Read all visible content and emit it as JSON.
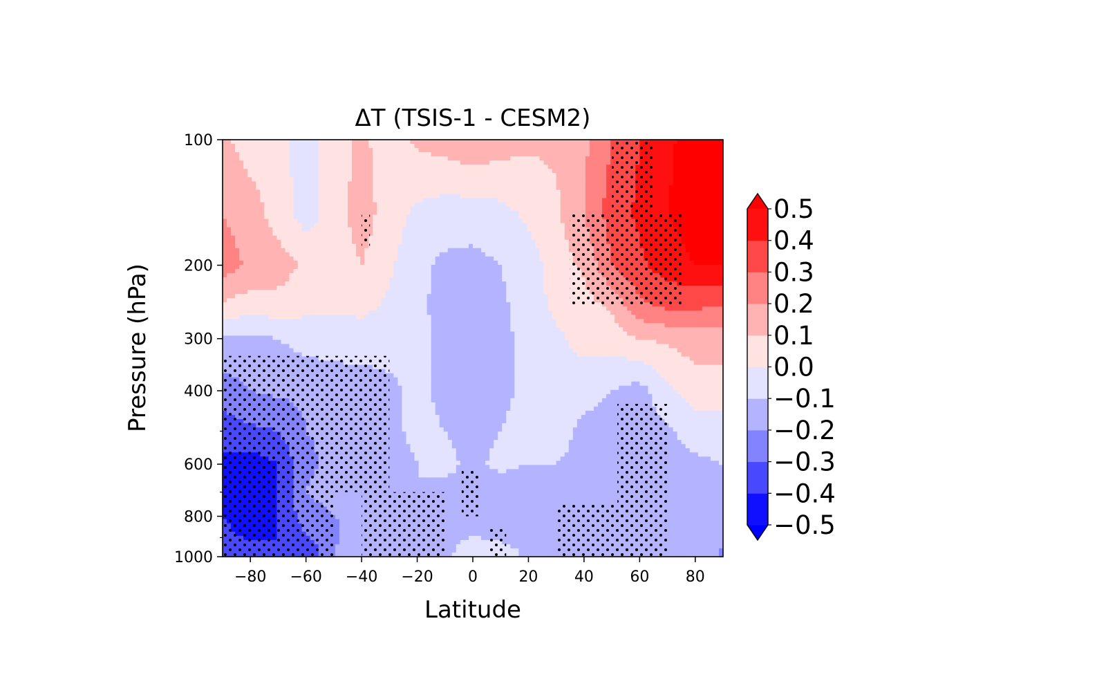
{
  "chart_data": {
    "type": "heatmap",
    "subtype": "filled-contour",
    "title": "ΔT (TSIS-1 - CESM2)",
    "xlabel": "Latitude",
    "ylabel": "Pressure (hPa)",
    "xlim": [
      -90,
      90
    ],
    "ylim": [
      1000,
      100
    ],
    "y_scale": "log",
    "x_ticks": [
      -80,
      -60,
      -40,
      -20,
      0,
      20,
      40,
      60,
      80
    ],
    "x_tick_labels": [
      "−80",
      "−60",
      "−40",
      "−20",
      "0",
      "20",
      "40",
      "60",
      "80"
    ],
    "y_ticks": [
      100,
      200,
      300,
      400,
      600,
      800,
      1000
    ],
    "y_tick_labels": [
      "100",
      "200",
      "300",
      "400",
      "600",
      "800",
      "1000"
    ],
    "y_minor_ticks": [
      500,
      700,
      900
    ],
    "colorbar": {
      "levels": [
        -0.5,
        -0.4,
        -0.3,
        -0.2,
        -0.1,
        0.0,
        0.1,
        0.2,
        0.3,
        0.4,
        0.5
      ],
      "tick_labels": [
        "−0.5",
        "−0.4",
        "−0.3",
        "−0.2",
        "−0.1",
        "0.0",
        "0.1",
        "0.2",
        "0.3",
        "0.4",
        "0.5"
      ],
      "extend": "both",
      "colors": [
        "#1010ff",
        "#4848ff",
        "#8383ff",
        "#b3b3ff",
        "#e3e3ff",
        "#ffe3e3",
        "#ffb3b3",
        "#ff8383",
        "#ff4848",
        "#ff1010"
      ],
      "under_color": "#0000ff",
      "over_color": "#ff0000"
    },
    "grid": false,
    "stippling": "black dots mark statistically significant regions",
    "latitudes": [
      -90,
      -80,
      -70,
      -60,
      -50,
      -40,
      -30,
      -20,
      -10,
      0,
      10,
      20,
      30,
      40,
      50,
      60,
      70,
      80,
      90
    ],
    "pressures": [
      100,
      150,
      200,
      250,
      300,
      400,
      500,
      600,
      700,
      850,
      1000
    ],
    "values": [
      [
        0.12,
        0.05,
        0.04,
        -0.05,
        0.05,
        0.12,
        0.05,
        0.12,
        0.15,
        0.18,
        0.15,
        0.12,
        0.12,
        0.18,
        0.3,
        0.4,
        0.48,
        0.55,
        0.58
      ],
      [
        0.2,
        0.15,
        0.05,
        -0.05,
        0.05,
        0.15,
        0.05,
        -0.02,
        -0.05,
        -0.05,
        -0.03,
        0.02,
        0.08,
        0.2,
        0.35,
        0.42,
        0.5,
        0.55,
        0.58
      ],
      [
        0.25,
        0.18,
        0.15,
        0.08,
        0.05,
        0.1,
        0.02,
        -0.08,
        -0.12,
        -0.13,
        -0.1,
        -0.05,
        0.05,
        0.12,
        0.3,
        0.38,
        0.45,
        0.5,
        0.5
      ],
      [
        0.08,
        0.05,
        0.06,
        0.03,
        0.02,
        0.03,
        -0.02,
        -0.08,
        -0.13,
        -0.13,
        -0.12,
        -0.05,
        0.02,
        0.06,
        0.12,
        0.28,
        0.32,
        0.32,
        0.3
      ],
      [
        -0.12,
        -0.12,
        -0.1,
        -0.06,
        -0.06,
        -0.05,
        -0.06,
        -0.08,
        -0.12,
        -0.14,
        -0.12,
        -0.08,
        -0.02,
        0.04,
        0.05,
        0.1,
        0.12,
        0.15,
        0.15
      ],
      [
        -0.25,
        -0.2,
        -0.18,
        -0.18,
        -0.15,
        -0.15,
        -0.12,
        -0.08,
        -0.12,
        -0.15,
        -0.12,
        -0.08,
        -0.05,
        -0.07,
        -0.1,
        -0.14,
        -0.02,
        0.05,
        0.05
      ],
      [
        -0.35,
        -0.32,
        -0.3,
        -0.2,
        -0.18,
        -0.15,
        -0.12,
        -0.08,
        -0.1,
        -0.12,
        -0.1,
        -0.07,
        -0.07,
        -0.12,
        -0.14,
        -0.15,
        -0.12,
        -0.06,
        -0.06
      ],
      [
        -0.42,
        -0.45,
        -0.4,
        -0.22,
        -0.18,
        -0.15,
        -0.14,
        -0.1,
        -0.08,
        -0.12,
        -0.08,
        -0.1,
        -0.1,
        -0.12,
        -0.14,
        -0.16,
        -0.12,
        -0.12,
        -0.1
      ],
      [
        -0.45,
        -0.48,
        -0.4,
        -0.2,
        -0.15,
        -0.15,
        -0.15,
        -0.1,
        -0.12,
        -0.12,
        -0.15,
        -0.15,
        -0.15,
        -0.15,
        -0.15,
        -0.2,
        -0.12,
        -0.12,
        -0.12
      ],
      [
        -0.38,
        -0.45,
        -0.4,
        -0.28,
        -0.22,
        -0.15,
        -0.12,
        -0.12,
        -0.12,
        -0.12,
        -0.15,
        -0.12,
        -0.12,
        -0.15,
        -0.15,
        -0.15,
        -0.12,
        -0.12,
        -0.15
      ],
      [
        -0.35,
        -0.35,
        -0.4,
        -0.4,
        -0.2,
        -0.12,
        -0.12,
        -0.12,
        -0.12,
        -0.05,
        -0.05,
        -0.12,
        -0.12,
        -0.12,
        -0.12,
        -0.12,
        -0.12,
        -0.15,
        -0.22
      ]
    ],
    "significance_regions": [
      {
        "lat": [
          -90,
          -50
        ],
        "p": [
          330,
          1000
        ]
      },
      {
        "lat": [
          -50,
          -30
        ],
        "p": [
          330,
          700
        ]
      },
      {
        "lat": [
          -40,
          -10
        ],
        "p": [
          700,
          1000
        ]
      },
      {
        "lat": [
          -40,
          -37
        ],
        "p": [
          150,
          180
        ]
      },
      {
        "lat": [
          -4,
          2
        ],
        "p": [
          620,
          800
        ]
      },
      {
        "lat": [
          6,
          12
        ],
        "p": [
          850,
          1000
        ]
      },
      {
        "lat": [
          30,
          62
        ],
        "p": [
          750,
          1000
        ]
      },
      {
        "lat": [
          52,
          70
        ],
        "p": [
          430,
          1000
        ]
      },
      {
        "lat": [
          35,
          75
        ],
        "p": [
          150,
          250
        ]
      },
      {
        "lat": [
          50,
          65
        ],
        "p": [
          100,
          150
        ]
      }
    ]
  }
}
